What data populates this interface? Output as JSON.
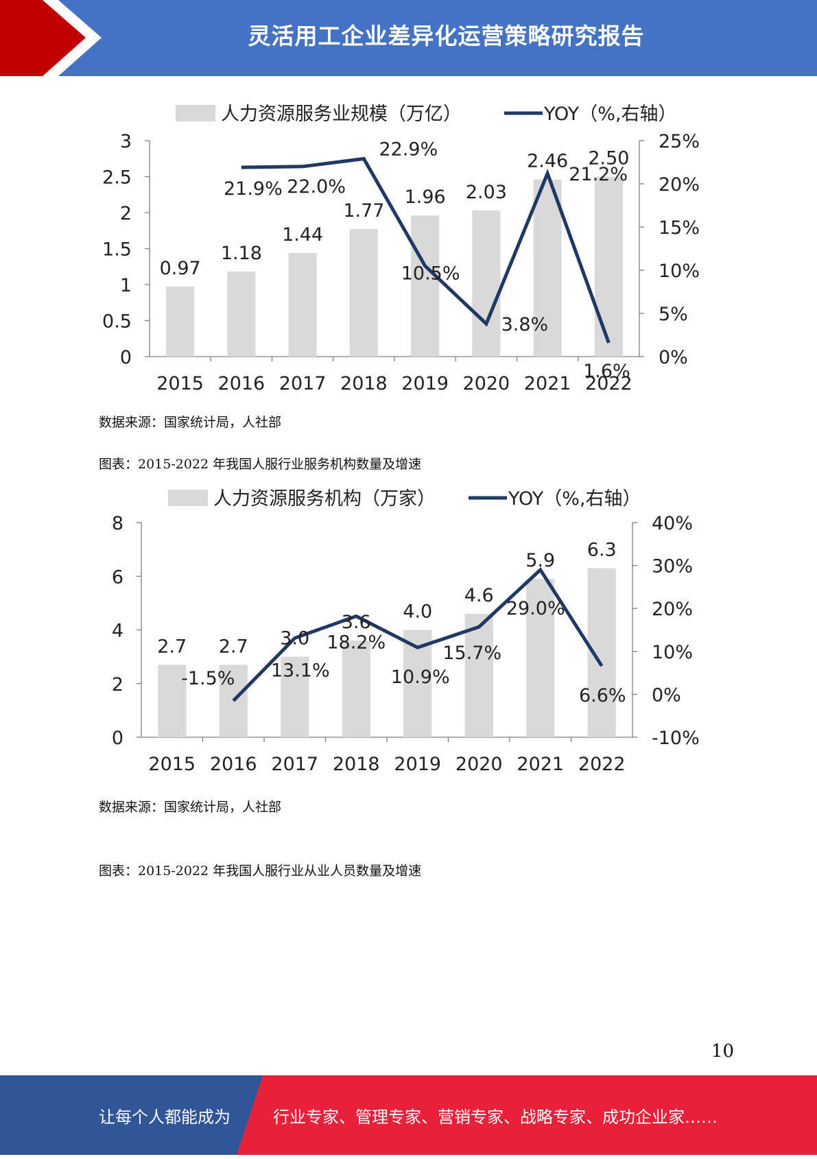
{
  "header": {
    "title": "灵活用工企业差异化运营策略研究报告"
  },
  "chart_data": [
    {
      "type": "bar",
      "categories": [
        "2015",
        "2016",
        "2017",
        "2018",
        "2019",
        "2020",
        "2021",
        "2022"
      ],
      "series": [
        {
          "name": "人力资源服务业规模（万亿）",
          "type": "bar",
          "axis": "left",
          "values": [
            0.97,
            1.18,
            1.44,
            1.77,
            1.96,
            2.03,
            2.46,
            2.5
          ],
          "labels": [
            "0.97",
            "1.18",
            "1.44",
            "1.77",
            "1.96",
            "2.03",
            "2.46",
            "2.50"
          ]
        },
        {
          "name": "YOY（%,右轴）",
          "type": "line",
          "axis": "right",
          "values": [
            null,
            21.9,
            22.0,
            22.9,
            10.5,
            3.8,
            21.2,
            1.6
          ],
          "labels": [
            "",
            "21.9%",
            "22.0%",
            "22.9%",
            "10.5%",
            "3.8%",
            "21.2%",
            "1.6%"
          ]
        }
      ],
      "ylim": [
        0,
        3
      ],
      "y_ticks": [
        "0",
        "0.5",
        "1",
        "1.5",
        "2",
        "2.5",
        "3"
      ],
      "y2lim": [
        0,
        25
      ],
      "y2_ticks": [
        "0%",
        "5%",
        "10%",
        "15%",
        "20%",
        "25%"
      ],
      "legend_position": "top",
      "grid": false,
      "colors": {
        "bar": "#d9d9d9",
        "line": "#1f3864"
      }
    },
    {
      "type": "bar",
      "categories": [
        "2015",
        "2016",
        "2017",
        "2018",
        "2019",
        "2020",
        "2021",
        "2022"
      ],
      "series": [
        {
          "name": "人力资源服务机构（万家）",
          "type": "bar",
          "axis": "left",
          "values": [
            2.7,
            2.7,
            3.0,
            3.6,
            4.0,
            4.6,
            5.9,
            6.3
          ],
          "labels": [
            "2.7",
            "2.7",
            "3.0",
            "3.6",
            "4.0",
            "4.6",
            "5.9",
            "6.3"
          ]
        },
        {
          "name": "YOY（%,右轴）",
          "type": "line",
          "axis": "right",
          "values": [
            null,
            -1.5,
            13.1,
            18.2,
            10.9,
            15.7,
            29.0,
            6.6
          ],
          "labels": [
            "",
            "-1.5%",
            "13.1%",
            "18.2%",
            "10.9%",
            "15.7%",
            "29.0%",
            "6.6%"
          ]
        }
      ],
      "ylim": [
        0,
        8
      ],
      "y_ticks": [
        "0",
        "2",
        "4",
        "6",
        "8"
      ],
      "y2lim": [
        -10,
        40
      ],
      "y2_ticks": [
        "-10%",
        "0%",
        "10%",
        "20%",
        "30%",
        "40%"
      ],
      "legend_position": "top",
      "grid": false,
      "colors": {
        "bar": "#d9d9d9",
        "line": "#1f3864"
      }
    }
  ],
  "captions": {
    "source1": "数据来源：国家统计局，人社部",
    "title2": "图表：2015-2022 年我国人服行业服务机构数量及增速",
    "source2": "数据来源：国家统计局，人社部",
    "title3": "图表：2015-2022 年我国人服行业从业人员数量及增速"
  },
  "page_number": "10",
  "footer": {
    "left": "让每个人都能成为",
    "right": "行业专家、管理专家、营销专家、战略专家、成功企业家……",
    "colors": {
      "blue": "#2f5597",
      "red": "#e8213a"
    }
  }
}
